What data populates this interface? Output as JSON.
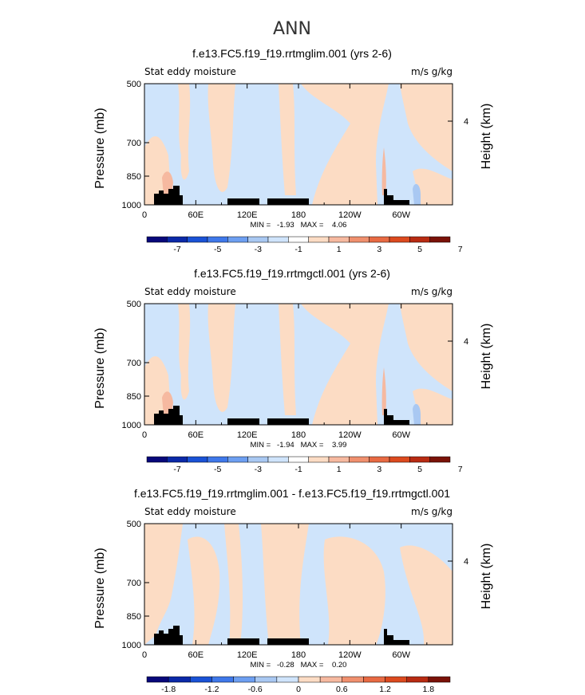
{
  "main_title": "ANN",
  "panel_left_label": "Stat eddy moisture",
  "panel_units": "m/s g/kg",
  "ylabel": "Pressure (mb)",
  "ylabel_right": "Height (km)",
  "yticks": [
    "500",
    "700",
    "850",
    "1000"
  ],
  "yticks_right": [
    "4"
  ],
  "xticks": [
    "0",
    "60E",
    "120E",
    "180",
    "120W",
    "60W"
  ],
  "colors": {
    "blue_1": "#cfe4fb",
    "blue_2": "#a9c8f2",
    "orange_1": "#fcdcc4",
    "orange_2": "#f6b9a0",
    "terrain": "#000000"
  },
  "chart_data": [
    {
      "type": "heatmap",
      "title": "f.e13.FC5.f19_f19.rrtmglim.001 (yrs 2-6)",
      "stats": "MIN =   -1.93   MAX =    4.06",
      "colorbar_labels": [
        "-7",
        "-5",
        "-3",
        "-1",
        "1",
        "3",
        "5",
        "7"
      ],
      "colorbar_colors": [
        "#08087a",
        "#0b29a8",
        "#1a52d6",
        "#3f78ea",
        "#6d9ff1",
        "#a9c8f2",
        "#cfe4fb",
        "#ffffff",
        "#fcdcc4",
        "#f6b9a0",
        "#f0906e",
        "#e86a43",
        "#dc4a1f",
        "#b82b12",
        "#7a1208"
      ]
    },
    {
      "type": "heatmap",
      "title": "f.e13.FC5.f19_f19.rrtmgctl.001 (yrs 2-6)",
      "stats": "MIN =   -1.94   MAX =    3.99",
      "colorbar_labels": [
        "-7",
        "-5",
        "-3",
        "-1",
        "1",
        "3",
        "5",
        "7"
      ],
      "colorbar_colors": [
        "#08087a",
        "#0b29a8",
        "#1a52d6",
        "#3f78ea",
        "#6d9ff1",
        "#a9c8f2",
        "#cfe4fb",
        "#ffffff",
        "#fcdcc4",
        "#f6b9a0",
        "#f0906e",
        "#e86a43",
        "#dc4a1f",
        "#b82b12",
        "#7a1208"
      ]
    },
    {
      "type": "heatmap",
      "title": "f.e13.FC5.f19_f19.rrtmglim.001 - f.e13.FC5.f19_f19.rrtmgctl.001",
      "stats": "MIN =   -0.28   MAX =    0.20",
      "colorbar_labels": [
        "-1.8",
        "-1.2",
        "-0.6",
        "0",
        "0.6",
        "1.2",
        "1.8"
      ],
      "colorbar_colors": [
        "#08087a",
        "#0b29a8",
        "#1a52d6",
        "#3f78ea",
        "#6d9ff1",
        "#a9c8f2",
        "#cfe4fb",
        "#fcdcc4",
        "#f6b9a0",
        "#f0906e",
        "#e86a43",
        "#dc4a1f",
        "#b82b12",
        "#7a1208"
      ]
    }
  ]
}
